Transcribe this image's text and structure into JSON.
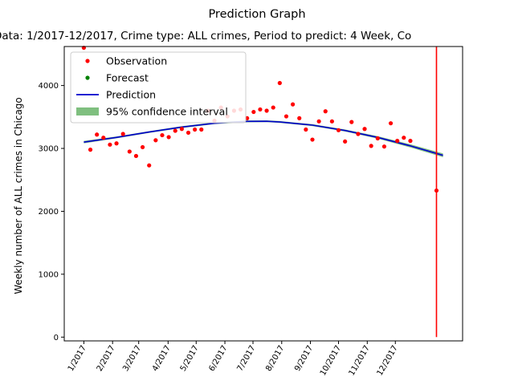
{
  "chart_data": {
    "type": "scatter",
    "title": "Prediction Graph",
    "subtitle": "Data: 1/2017-12/2017,  Crime type: ALL crimes,  Period to predict: 4 Week,  Co",
    "xlabel": "",
    "ylabel": "Weekly number of ALL crimes in Chicago",
    "ylim": [
      -60,
      4620
    ],
    "yticks": [
      0,
      1000,
      2000,
      3000,
      4000
    ],
    "week_range": [
      -3,
      58
    ],
    "xtick_labels": [
      "1/2017",
      "2/2017",
      "3/2017",
      "4/2017",
      "5/2017",
      "6/2017",
      "7/2017",
      "8/2017",
      "9/2017",
      "10/2017",
      "11/2017",
      "12/2017"
    ],
    "xtick_weeks": [
      0,
      4.4,
      8.4,
      12.9,
      17.2,
      21.6,
      25.9,
      30.3,
      34.7,
      39.0,
      43.4,
      47.7
    ],
    "grid": false,
    "legend": {
      "position": "upper-left",
      "entries": [
        "Observation",
        "Forecast",
        "Prediction",
        "95% confidence interval"
      ]
    },
    "series": [
      {
        "name": "Observation",
        "marker": "dot",
        "color": "#ff0000",
        "x": [
          0,
          1,
          2,
          3,
          4,
          5,
          6,
          7,
          8,
          9,
          10,
          11,
          12,
          13,
          14,
          15,
          16,
          17,
          18,
          19,
          20,
          21,
          22,
          23,
          24,
          25,
          26,
          27,
          28,
          29,
          30,
          31,
          32,
          33,
          34,
          35,
          36,
          37,
          38,
          39,
          40,
          41,
          42,
          43,
          44,
          45,
          46,
          47,
          48,
          49,
          50,
          54
        ],
        "y": [
          4600,
          2980,
          3220,
          3170,
          3060,
          3080,
          3230,
          2950,
          2880,
          3020,
          2730,
          3130,
          3210,
          3180,
          3280,
          3310,
          3250,
          3300,
          3300,
          3600,
          3440,
          3650,
          3510,
          3600,
          3620,
          3480,
          3580,
          3620,
          3600,
          3650,
          4040,
          3510,
          3700,
          3480,
          3300,
          3140,
          3430,
          3590,
          3430,
          3290,
          3110,
          3420,
          3230,
          3310,
          3040,
          3160,
          3030,
          3400,
          3120,
          3170,
          3120,
          2330
        ]
      },
      {
        "name": "Forecast",
        "marker": "dot",
        "color": "#008000",
        "x": [],
        "y": []
      },
      {
        "name": "Prediction",
        "color": "#0000cc",
        "x": [
          0,
          5,
          10,
          15,
          20,
          25,
          28,
          30,
          35,
          40,
          45,
          50,
          55
        ],
        "y": [
          3100,
          3175,
          3260,
          3340,
          3400,
          3430,
          3432,
          3420,
          3370,
          3285,
          3175,
          3040,
          2890
        ]
      },
      {
        "name": "95% confidence interval",
        "color": "#7fbf7f",
        "x": [
          0,
          5,
          10,
          15,
          20,
          25,
          28,
          30,
          35,
          40,
          45,
          50,
          55
        ],
        "lower": [
          3080,
          3160,
          3245,
          3325,
          3385,
          3415,
          3417,
          3405,
          3355,
          3268,
          3155,
          3015,
          2860
        ],
        "upper": [
          3120,
          3190,
          3275,
          3355,
          3415,
          3445,
          3447,
          3435,
          3385,
          3302,
          3195,
          3065,
          2920
        ]
      }
    ],
    "vertical_marker": {
      "x": 54,
      "y": [
        0,
        4620
      ],
      "color": "#ff0000"
    }
  }
}
